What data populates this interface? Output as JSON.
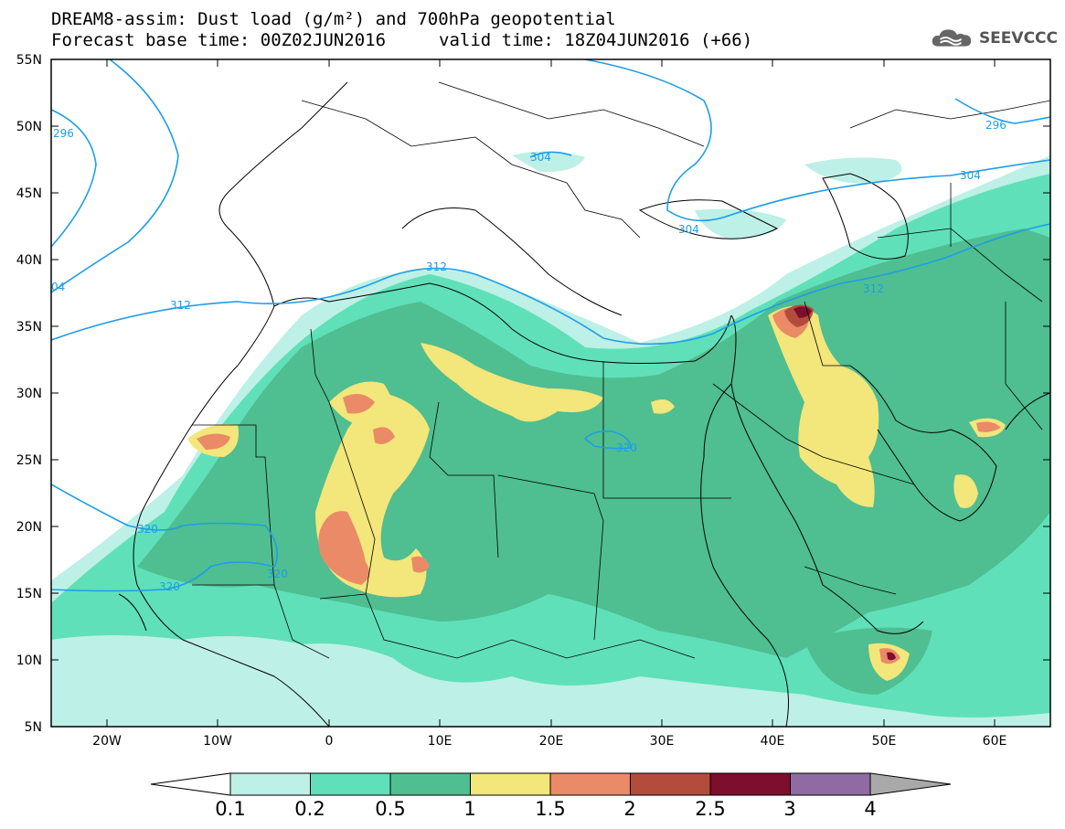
{
  "title_line1": "DREAM8-assim: Dust load (g/m²) and 700hPa geopotential",
  "title_line2_left": "Forecast base time: 00Z02JUN2016",
  "title_line2_right": "valid time: 18Z04JUN2016 (+66)",
  "logo_text": "SEEVCCC",
  "lat_labels": [
    "55N",
    "50N",
    "45N",
    "40N",
    "35N",
    "30N",
    "25N",
    "20N",
    "15N",
    "10N",
    "5N"
  ],
  "lon_labels": [
    "20W",
    "10W",
    "0",
    "10E",
    "20E",
    "30E",
    "40E",
    "50E",
    "60E"
  ],
  "contour_labels": {
    "c296_west": "296",
    "c296_east": "296",
    "c304_center": "304",
    "c304_black_sea": "304",
    "c304_east": "304",
    "c304_edge": "04",
    "c312_sardinia": "312",
    "c312_atlantic": "312",
    "c312_caspian": "312",
    "c320_egypt": "320",
    "c320_west": "320",
    "c320_sahel": "320",
    "c320_coast": "320"
  },
  "legend": {
    "colors": [
      "#bdf0e6",
      "#5fe0b9",
      "#4fbe91",
      "#f3e67a",
      "#eb8a66",
      "#b44c3c",
      "#7d0e2d",
      "#8f6aa3"
    ],
    "over_color": "#a9a9a9",
    "under_color": "#ffffff",
    "labels": [
      "0.1",
      "0.2",
      "0.5",
      "1",
      "1.5",
      "2",
      "2.5",
      "3",
      "4"
    ]
  }
}
